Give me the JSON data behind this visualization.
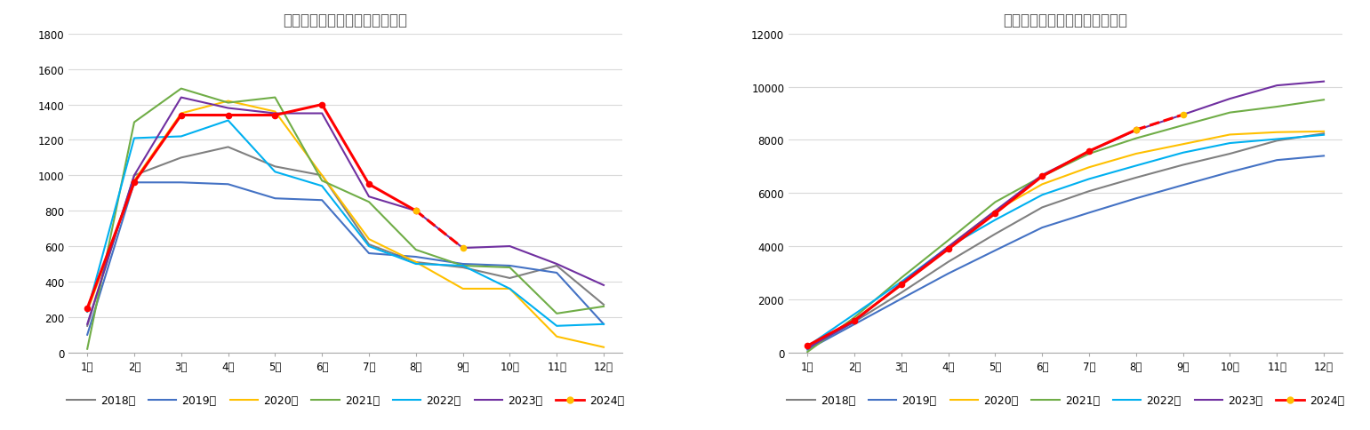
{
  "title_left": "巴西大豆出口量：当月（万吨）",
  "title_right": "巴西大豆出口量：累计（万吨）",
  "months": [
    "1月",
    "2月",
    "3月",
    "4月",
    "5月",
    "6月",
    "7月",
    "8月",
    "9月",
    "10月",
    "11月",
    "12月"
  ],
  "monthly": {
    "2018": [
      150,
      1000,
      1100,
      1160,
      1050,
      1000,
      610,
      510,
      480,
      420,
      490,
      270
    ],
    "2019": [
      100,
      960,
      960,
      950,
      870,
      860,
      560,
      540,
      500,
      490,
      450,
      160
    ],
    "2020": [
      230,
      970,
      1350,
      1420,
      1360,
      1000,
      640,
      510,
      360,
      360,
      90,
      30
    ],
    "2021": [
      20,
      1300,
      1490,
      1410,
      1440,
      970,
      850,
      580,
      490,
      480,
      220,
      260
    ],
    "2022": [
      230,
      1210,
      1220,
      1310,
      1020,
      940,
      600,
      500,
      490,
      360,
      150,
      160
    ],
    "2023": [
      160,
      1000,
      1440,
      1380,
      1350,
      1350,
      880,
      800,
      590,
      600,
      500,
      380
    ],
    "2024_solid": [
      250,
      960,
      1340,
      1340,
      1340,
      1400,
      950,
      800
    ],
    "2024_dashed": [
      800,
      590
    ]
  },
  "cumulative": {
    "2018": [
      150,
      1150,
      2250,
      3410,
      4460,
      5460,
      6070,
      6580,
      7060,
      7480,
      7970,
      8240
    ],
    "2019": [
      100,
      1060,
      2020,
      2970,
      3840,
      4700,
      5260,
      5800,
      6300,
      6790,
      7240,
      7400
    ],
    "2020": [
      230,
      1200,
      2550,
      3970,
      5330,
      6330,
      6970,
      7480,
      7840,
      8200,
      8290,
      8320
    ],
    "2021": [
      20,
      1320,
      2810,
      4220,
      5660,
      6630,
      7480,
      8060,
      8550,
      9030,
      9250,
      9510
    ],
    "2022": [
      230,
      1440,
      2660,
      3970,
      4990,
      5930,
      6530,
      7030,
      7520,
      7880,
      8030,
      8190
    ],
    "2023": [
      160,
      1160,
      2600,
      3980,
      5330,
      6680,
      7560,
      8360,
      8950,
      9550,
      10050,
      10200
    ],
    "2024_solid": [
      250,
      1210,
      2550,
      3890,
      5230,
      6630,
      7580,
      8380
    ],
    "2024_dashed": [
      8380,
      8950
    ]
  },
  "colors": {
    "2018": "#808080",
    "2019": "#4472c4",
    "2020": "#ffc000",
    "2021": "#70ad47",
    "2022": "#00b0f0",
    "2023": "#7030a0",
    "2024": "#ff0000"
  },
  "ylim_left": [
    0,
    1800
  ],
  "ylim_right": [
    0,
    12000
  ],
  "yticks_left": [
    0,
    200,
    400,
    600,
    800,
    1000,
    1200,
    1400,
    1600,
    1800
  ],
  "yticks_right": [
    0,
    2000,
    4000,
    6000,
    8000,
    10000,
    12000
  ],
  "background_color": "#ffffff",
  "grid_color": "#d9d9d9",
  "title_color": "#595959",
  "legend_labels": [
    "2018年",
    "2019年",
    "2020年",
    "2021年",
    "2022年",
    "2023年",
    "2024年"
  ]
}
